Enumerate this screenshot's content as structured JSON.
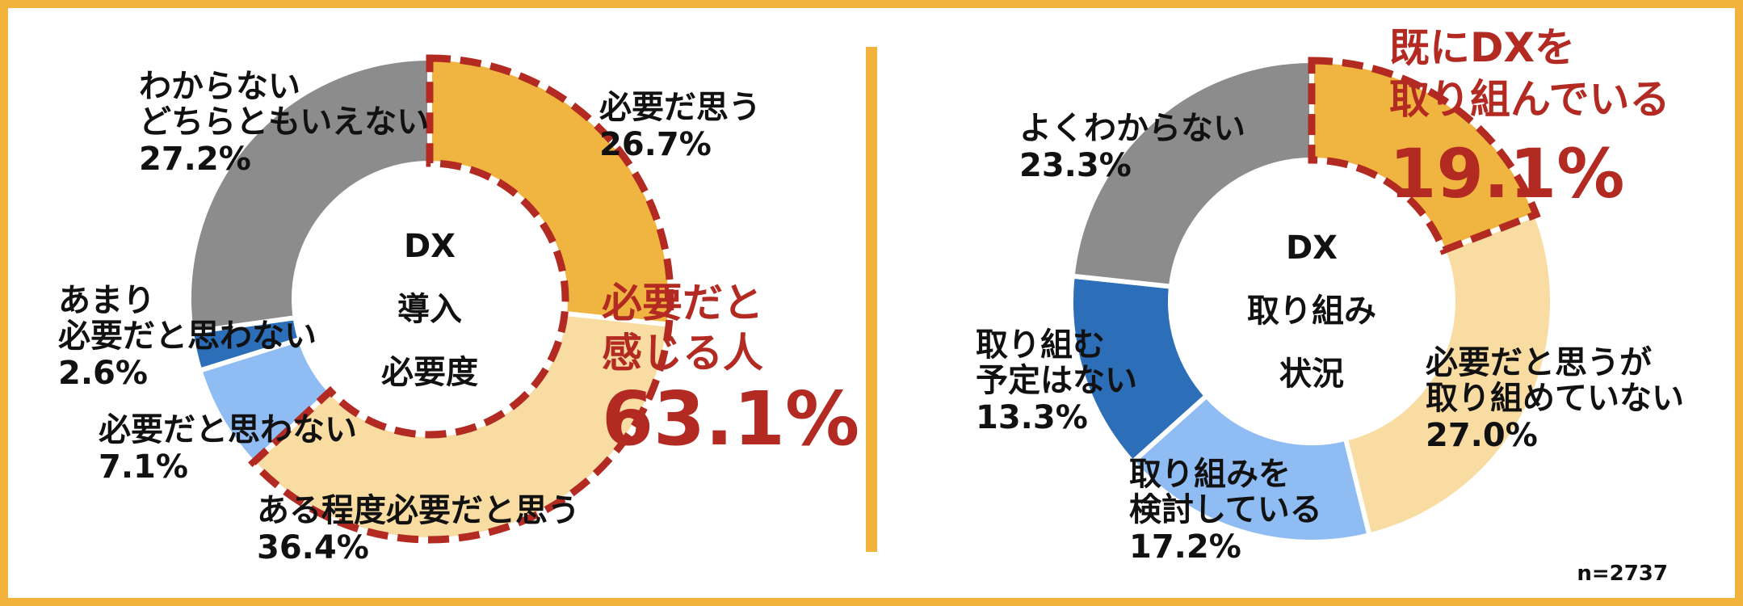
{
  "colors": {
    "frame": "#f2b33d",
    "divider": "#f2b33d",
    "highlight_dash": "#b22a22",
    "highlight_text": "#b22a22",
    "label_text": "#111111"
  },
  "footnote": "n=2737",
  "chart_data": [
    {
      "type": "donut",
      "center_label_lines": [
        "DX",
        "導入",
        "必要度"
      ],
      "slices": [
        {
          "label_lines": [
            "必要だ思う"
          ],
          "value_text": "26.7%",
          "value": 26.7,
          "color": "#f0b540"
        },
        {
          "label_lines": [
            "ある程度必要だと思う"
          ],
          "value_text": "36.4%",
          "value": 36.4,
          "color": "#f8dca2"
        },
        {
          "label_lines": [
            "必要だと思わない"
          ],
          "value_text": "7.1%",
          "value": 7.1,
          "color": "#8fbcf2"
        },
        {
          "label_lines": [
            "あまり",
            "必要だと思わない"
          ],
          "value_text": "2.6%",
          "value": 2.6,
          "color": "#2d6eb8"
        },
        {
          "label_lines": [
            "わからない",
            "どちらともいえない"
          ],
          "value_text": "27.2%",
          "value": 27.2,
          "color": "#8c8c8c"
        }
      ],
      "highlight": {
        "lines": [
          "必要だと",
          "感じる人"
        ],
        "value_text": "63.1%",
        "value": 63.1,
        "slices": [
          0,
          1
        ]
      }
    },
    {
      "type": "donut",
      "center_label_lines": [
        "DX",
        "取り組み",
        "状況"
      ],
      "slices": [
        {
          "label_lines": [
            "既にDXを",
            "取り組んでいる"
          ],
          "value_text": "19.1%",
          "value": 19.1,
          "color": "#f0b540"
        },
        {
          "label_lines": [
            "必要だと思うが",
            "取り組めていない"
          ],
          "value_text": "27.0%",
          "value": 27.0,
          "color": "#f8dca2"
        },
        {
          "label_lines": [
            "取り組みを",
            "検討している"
          ],
          "value_text": "17.2%",
          "value": 17.2,
          "color": "#8fbcf2"
        },
        {
          "label_lines": [
            "取り組む",
            "予定はない"
          ],
          "value_text": "13.3%",
          "value": 13.3,
          "color": "#2d6eb8"
        },
        {
          "label_lines": [
            "よくわからない"
          ],
          "value_text": "23.3%",
          "value": 23.3,
          "color": "#8c8c8c"
        }
      ],
      "highlight": {
        "slices": [
          0
        ]
      }
    }
  ]
}
